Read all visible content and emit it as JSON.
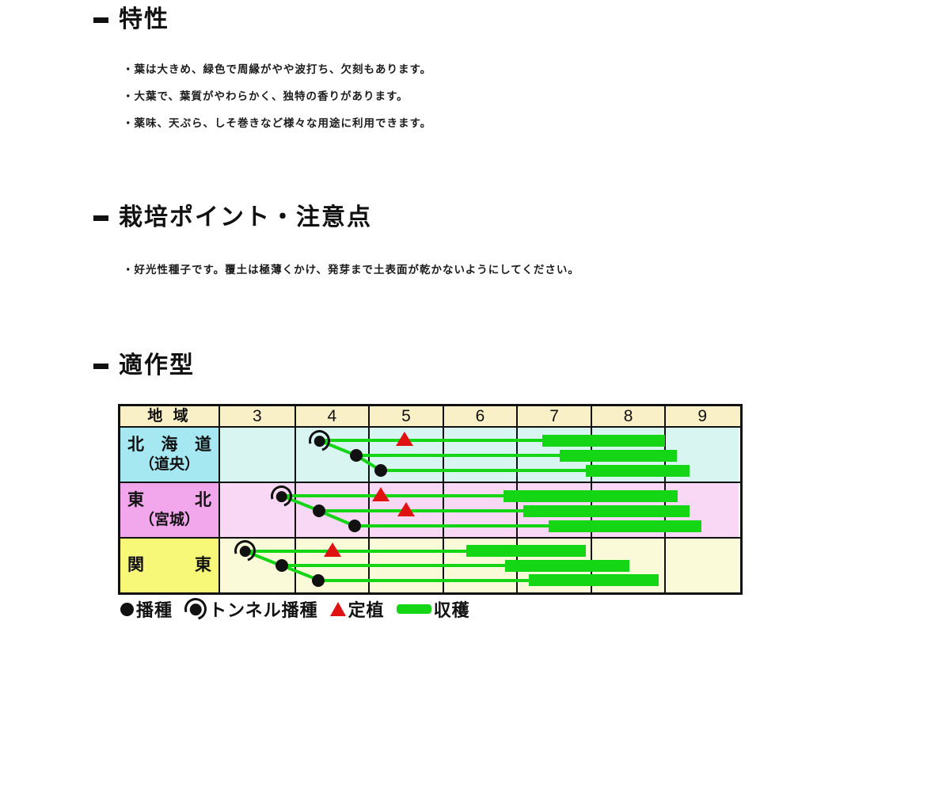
{
  "sections": [
    {
      "title": "特性",
      "bullets": [
        "・葉は大きめ、緑色で周縁がやや波打ち、欠刻もあります。",
        "・大葉で、葉質がやわらかく、独特の香りがあります。",
        "・薬味、天ぷら、しそ巻きなど様々な用途に利用できます。"
      ]
    },
    {
      "title": "栽培ポイント・注意点",
      "bullets": [
        "・好光性種子です。覆土は極薄くかけ、発芽まで土表面が乾かないようにしてください。"
      ]
    },
    {
      "title": "適作型",
      "bullets": []
    }
  ],
  "colors": {
    "green": "#15d615",
    "red": "#e01111",
    "border": "#111111",
    "header_bg": "#faf0c8"
  },
  "chart_data": {
    "type": "bar",
    "subtype": "gantt-cropping-calendar",
    "title": "適作型",
    "region_header": "地 域",
    "categories": [
      "3",
      "4",
      "5",
      "6",
      "7",
      "8",
      "9"
    ],
    "x_domain": [
      3,
      10
    ],
    "x_unit": "month",
    "rows": [
      {
        "region": "北海道",
        "region_sub": "（道央）",
        "label_bg": "#a5e8f2",
        "cell_bg": "#d8f5f2",
        "lines": [
          {
            "sow": 4.34,
            "sow_type": "tunnel",
            "transplant": 5.49,
            "harvest": [
              7.35,
              9.01
            ]
          },
          {
            "sow": 4.84,
            "sow_type": "dot",
            "harvest": [
              7.58,
              9.17
            ]
          },
          {
            "sow": 5.17,
            "sow_type": "dot",
            "harvest": [
              7.94,
              9.34
            ]
          }
        ]
      },
      {
        "region": "東北",
        "region_sub": "（宮城）",
        "label_bg": "#f2a6ec",
        "cell_bg": "#f8d8f5",
        "lines": [
          {
            "sow": 3.83,
            "sow_type": "tunnel",
            "transplant": 5.17,
            "harvest": [
              6.83,
              9.18
            ]
          },
          {
            "sow": 4.34,
            "sow_type": "dot",
            "transplant": 5.51,
            "harvest": [
              7.09,
              9.34
            ]
          },
          {
            "sow": 4.82,
            "sow_type": "dot",
            "harvest": [
              7.43,
              9.5
            ]
          }
        ]
      },
      {
        "region": "関東",
        "region_sub": "",
        "label_bg": "#f7f778",
        "cell_bg": "#fafad8",
        "lines": [
          {
            "sow": 3.34,
            "sow_type": "tunnel",
            "transplant": 4.52,
            "harvest": [
              6.32,
              7.94
            ]
          },
          {
            "sow": 3.83,
            "sow_type": "dot",
            "harvest": [
              6.85,
              8.53
            ]
          },
          {
            "sow": 4.33,
            "sow_type": "dot",
            "harvest": [
              7.17,
              8.92
            ]
          }
        ]
      }
    ],
    "legend": [
      {
        "type": "dot",
        "label": "播種"
      },
      {
        "type": "tunnel",
        "label": "トンネル播種"
      },
      {
        "type": "triangle",
        "label": "定植"
      },
      {
        "type": "bar",
        "label": "収穫"
      }
    ]
  }
}
